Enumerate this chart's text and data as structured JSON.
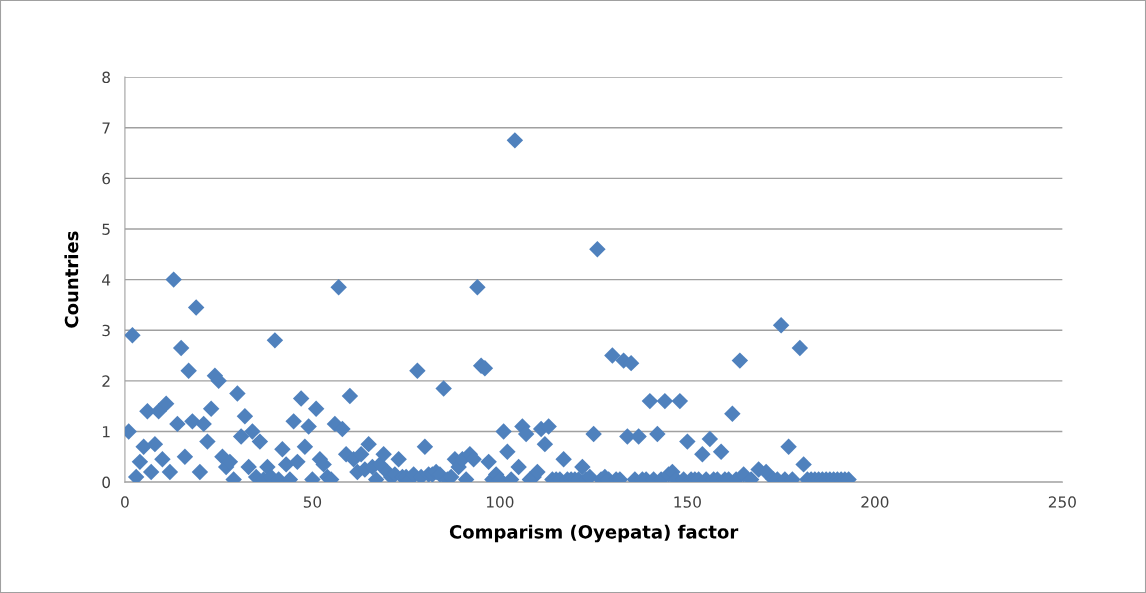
{
  "chart_data": {
    "type": "scatter",
    "xlabel": "Comparism (Oyepata) factor",
    "ylabel": "Countries",
    "x": [
      1,
      2,
      3,
      4,
      5,
      6,
      7,
      8,
      9,
      10,
      11,
      12,
      13,
      14,
      15,
      16,
      17,
      18,
      19,
      20,
      21,
      22,
      23,
      24,
      25,
      26,
      27,
      28,
      29,
      30,
      31,
      32,
      33,
      34,
      35,
      36,
      37,
      38,
      39,
      40,
      41,
      42,
      43,
      44,
      45,
      46,
      47,
      48,
      49,
      50,
      51,
      52,
      53,
      54,
      55,
      56,
      57,
      58,
      59,
      60,
      61,
      62,
      63,
      64,
      65,
      66,
      67,
      68,
      69,
      70,
      71,
      72,
      73,
      74,
      75,
      76,
      77,
      78,
      79,
      80,
      81,
      82,
      83,
      84,
      85,
      86,
      87,
      88,
      89,
      90,
      91,
      92,
      93,
      94,
      95,
      96,
      97,
      98,
      99,
      100,
      101,
      102,
      103,
      104,
      105,
      106,
      107,
      108,
      109,
      110,
      111,
      112,
      113,
      114,
      115,
      116,
      117,
      118,
      119,
      120,
      121,
      122,
      123,
      124,
      125,
      126,
      127,
      128,
      129,
      130,
      131,
      132,
      133,
      134,
      135,
      136,
      137,
      138,
      139,
      140,
      141,
      142,
      143,
      144,
      145,
      146,
      147,
      148,
      149,
      150,
      151,
      152,
      153,
      154,
      155,
      156,
      157,
      158,
      159,
      160,
      161,
      162,
      163,
      164,
      165,
      167,
      169,
      171,
      173,
      174,
      175,
      176,
      177,
      178,
      180,
      181,
      182,
      183,
      184,
      185,
      186,
      187,
      188,
      189,
      190,
      191,
      192,
      193
    ],
    "values": [
      1.0,
      2.9,
      0.1,
      0.4,
      0.7,
      1.4,
      0.2,
      0.75,
      1.4,
      0.45,
      1.55,
      0.2,
      4.0,
      1.15,
      2.65,
      0.5,
      2.2,
      1.2,
      3.45,
      0.2,
      1.15,
      0.8,
      1.45,
      2.1,
      2.0,
      0.5,
      0.3,
      0.4,
      0.05,
      1.75,
      0.9,
      1.3,
      0.3,
      1.0,
      0.1,
      0.8,
      0.05,
      0.3,
      0.1,
      2.8,
      0.05,
      0.65,
      0.35,
      0.05,
      1.2,
      0.4,
      1.65,
      0.7,
      1.1,
      0.05,
      1.45,
      0.45,
      0.35,
      0.1,
      0.05,
      1.15,
      3.85,
      1.05,
      0.55,
      1.7,
      0.45,
      0.2,
      0.55,
      0.25,
      0.75,
      0.3,
      0.05,
      0.35,
      0.55,
      0.2,
      0.1,
      0.15,
      0.45,
      0.1,
      0.1,
      0.05,
      0.15,
      2.2,
      0.1,
      0.7,
      0.15,
      0.15,
      0.2,
      0.15,
      1.85,
      0.05,
      0.1,
      0.45,
      0.3,
      0.45,
      0.05,
      0.55,
      0.45,
      3.85,
      2.3,
      2.25,
      0.4,
      0.05,
      0.15,
      0.05,
      1.0,
      0.6,
      0.05,
      6.75,
      0.3,
      1.1,
      0.95,
      0.05,
      0.1,
      0.2,
      1.05,
      0.75,
      1.1,
      0.05,
      0.05,
      0.05,
      0.45,
      0.05,
      0.05,
      0.05,
      0.05,
      0.3,
      0.05,
      0.1,
      0.95,
      4.6,
      0.05,
      0.1,
      0.05,
      2.5,
      0.05,
      0.05,
      2.4,
      0.9,
      2.35,
      0.05,
      0.9,
      0.05,
      0.05,
      1.6,
      0.05,
      0.95,
      0.05,
      1.6,
      0.15,
      0.2,
      0.05,
      1.6,
      0.05,
      0.8,
      0.05,
      0.05,
      0.05,
      0.55,
      0.05,
      0.85,
      0.05,
      0.05,
      0.6,
      0.05,
      0.05,
      1.35,
      0.05,
      2.4,
      0.15,
      0.05,
      0.25,
      0.2,
      0.05,
      0.05,
      3.1,
      0.05,
      0.7,
      0.05,
      2.65,
      0.35,
      0.05,
      0.05,
      0.05,
      0.05,
      0.05,
      0.05,
      0.05,
      0.05,
      0.05,
      0.05,
      0.05,
      0.05
    ],
    "color": "#4f81bd",
    "marker": "diamond",
    "xlim": [
      0,
      250
    ],
    "xticks": [
      0,
      50,
      100,
      150,
      200,
      250
    ],
    "ylim": [
      0,
      8
    ],
    "yticks": [
      0,
      1,
      2,
      3,
      4,
      5,
      6,
      7,
      8
    ],
    "grid": "y",
    "legend": false
  }
}
